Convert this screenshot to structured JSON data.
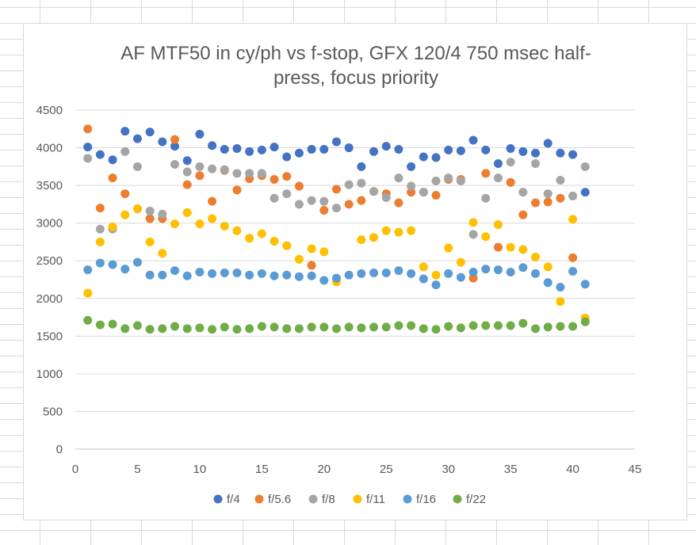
{
  "chart_data": {
    "type": "scatter",
    "title_lines": [
      "AF MTF50 in cy/ph vs f-stop, GFX 120/4 750 msec half-",
      "press, focus priority"
    ],
    "xlabel": "",
    "ylabel": "",
    "xlim": [
      0,
      45
    ],
    "ylim": [
      0,
      4500
    ],
    "x_ticks": [
      0,
      5,
      10,
      15,
      20,
      25,
      30,
      35,
      40,
      45
    ],
    "y_ticks": [
      0,
      500,
      1000,
      1500,
      2000,
      2500,
      3000,
      3500,
      4000,
      4500
    ],
    "grid": "horizontal",
    "legend_position": "bottom",
    "series": [
      {
        "name": "f/4",
        "color": "#4472C4",
        "y": [
          4010,
          3910,
          3840,
          4220,
          4120,
          4210,
          4080,
          4020,
          3830,
          4180,
          4030,
          3980,
          3990,
          3950,
          3970,
          4010,
          3880,
          3930,
          3980,
          3980,
          4080,
          4000,
          3750,
          3950,
          4020,
          3980,
          3750,
          3880,
          3870,
          3970,
          3960,
          4100,
          3970,
          3790,
          3990,
          3950,
          3930,
          4060,
          3930,
          3910,
          3410
        ]
      },
      {
        "name": "f/5.6",
        "color": "#ED7D31",
        "y": [
          4250,
          3200,
          3600,
          3390,
          3190,
          3060,
          3060,
          4110,
          3510,
          3630,
          3290,
          3700,
          3440,
          3590,
          3630,
          3580,
          3620,
          3490,
          2440,
          3170,
          3450,
          3250,
          3300,
          3420,
          3390,
          3270,
          3410,
          3410,
          3370,
          3580,
          3580,
          2270,
          3660,
          2680,
          3540,
          3110,
          3270,
          3280,
          3330,
          2540,
          null
        ]
      },
      {
        "name": "f/8",
        "color": "#A5A5A5",
        "y": [
          3860,
          2920,
          2920,
          3950,
          3750,
          3160,
          3120,
          3780,
          3680,
          3750,
          3720,
          3710,
          3660,
          3660,
          3660,
          3330,
          3390,
          3250,
          3300,
          3290,
          3200,
          3510,
          3530,
          3420,
          3340,
          3600,
          3490,
          3410,
          3560,
          3600,
          3560,
          2850,
          3330,
          3600,
          3810,
          3410,
          3790,
          3390,
          3570,
          3360,
          3750
        ]
      },
      {
        "name": "f/11",
        "color": "#FFC000",
        "y": [
          2070,
          2750,
          2950,
          3110,
          3190,
          2750,
          2600,
          2990,
          3140,
          2990,
          3060,
          2960,
          2900,
          2800,
          2860,
          2760,
          2700,
          2520,
          2660,
          2620,
          2220,
          null,
          2780,
          2810,
          2900,
          2880,
          2900,
          2420,
          2310,
          2670,
          2480,
          3010,
          2820,
          2980,
          2680,
          2650,
          2550,
          2420,
          1960,
          3050,
          1740
        ]
      },
      {
        "name": "f/16",
        "color": "#5B9BD5",
        "y": [
          2380,
          2470,
          2450,
          2390,
          2480,
          2310,
          2310,
          2370,
          2300,
          2350,
          2330,
          2340,
          2340,
          2310,
          2330,
          2300,
          2310,
          2290,
          2300,
          2240,
          2270,
          2310,
          2330,
          2340,
          2340,
          2370,
          2330,
          2260,
          2180,
          2330,
          2280,
          2350,
          2390,
          2380,
          2350,
          2410,
          2330,
          2210,
          2150,
          2360,
          2190
        ]
      },
      {
        "name": "f/22",
        "color": "#70AD47",
        "y": [
          1710,
          1650,
          1660,
          1600,
          1640,
          1590,
          1600,
          1630,
          1600,
          1610,
          1590,
          1620,
          1590,
          1600,
          1630,
          1620,
          1600,
          1600,
          1620,
          1620,
          1600,
          1620,
          1610,
          1620,
          1620,
          1640,
          1640,
          1600,
          1590,
          1630,
          1610,
          1640,
          1640,
          1640,
          1640,
          1670,
          1600,
          1620,
          1630,
          1630,
          1690
        ]
      }
    ]
  }
}
